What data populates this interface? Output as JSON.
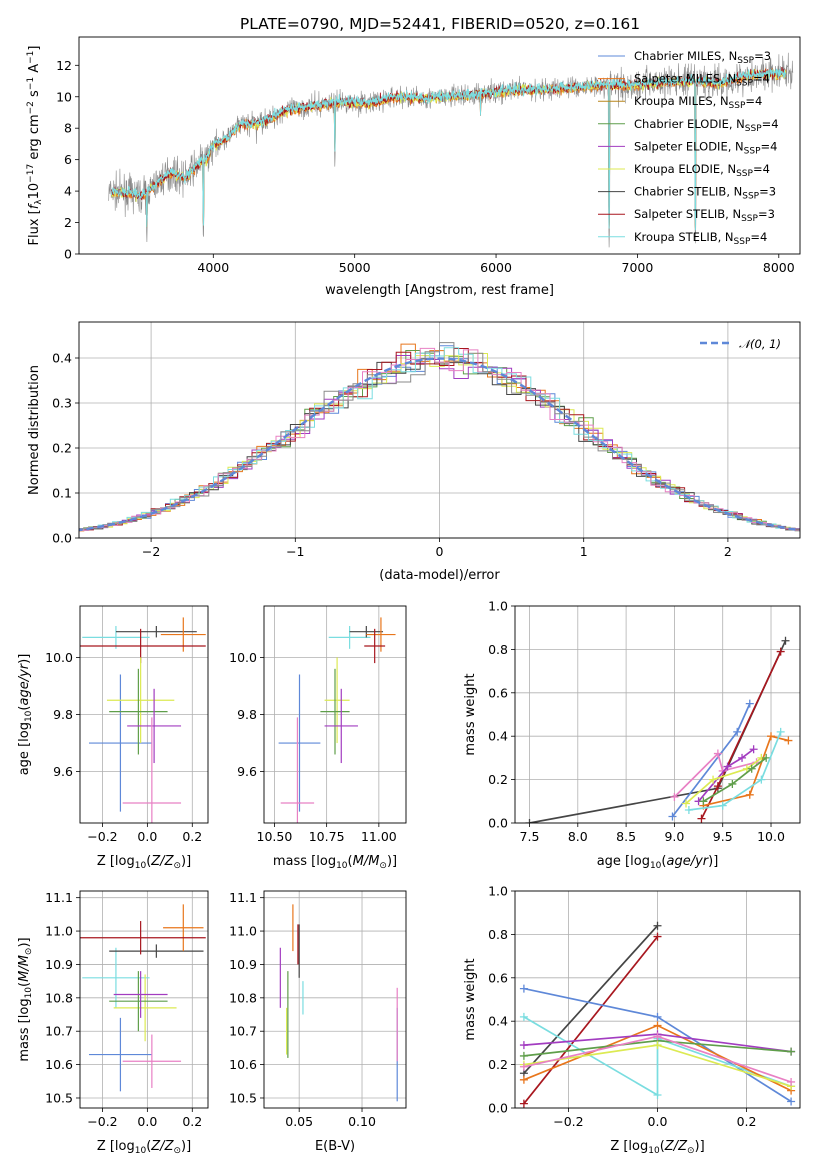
{
  "figure": {
    "title": "PLATE=0790, MJD=52441, FIBERID=0520, z=0.161"
  },
  "colors": {
    "orange": "#e8761c",
    "violet": "#a23cc0",
    "yellow": "#dcea52",
    "gray": "#8a8a8a",
    "dark_gray": "#454545",
    "dark_red": "#a8171f",
    "cyan": "#7adde0",
    "blue": "#5e88d8",
    "pink": "#e880c4",
    "green": "#5f9e4a"
  },
  "chart_data": [
    {
      "type": "line",
      "xlabel": "wavelength [Angstrom, rest frame]",
      "ylabel": "Flux [f_λ 10^-17 erg cm^-2 s^-1 A^-1]",
      "xlim": [
        3050,
        8150
      ],
      "ylim": [
        0,
        13.8
      ],
      "xticks": [
        4000,
        5000,
        6000,
        7000,
        8000
      ],
      "yticks": [
        0,
        2,
        4,
        6,
        8,
        10,
        12
      ],
      "grid": false,
      "legend_position": "right",
      "series": [
        {
          "name": "Chabrier MILES, N_SSP=3",
          "color": "#5e88d8"
        },
        {
          "name": "Salpeter MILES, N_SSP=4",
          "color": "#e8761c"
        },
        {
          "name": "Kroupa MILES, N_SSP=4",
          "color": "#b8861b"
        },
        {
          "name": "Chabrier ELODIE, N_SSP=4",
          "color": "#5f9e4a"
        },
        {
          "name": "Salpeter ELODIE, N_SSP=4",
          "color": "#a23cc0"
        },
        {
          "name": "Kroupa ELODIE, N_SSP=4",
          "color": "#dcea52"
        },
        {
          "name": "Chabrier STELIB, N_SSP=3",
          "color": "#454545"
        },
        {
          "name": "Salpeter STELIB, N_SSP=3",
          "color": "#a8171f"
        },
        {
          "name": "Kroupa STELIB, N_SSP=4",
          "color": "#7adde0"
        }
      ],
      "continuum": {
        "x": [
          3260,
          3400,
          3500,
          3600,
          3700,
          3800,
          3900,
          3950,
          4000,
          4100,
          4200,
          4300,
          4400,
          4500,
          4700,
          4900,
          5100,
          5300,
          5500,
          5800,
          6100,
          6400,
          6700,
          7000,
          7300,
          7600,
          7800,
          8100
        ],
        "y": [
          3.9,
          3.9,
          3.7,
          4.5,
          5.2,
          4.8,
          5.8,
          6.0,
          6.9,
          7.4,
          8.3,
          8.3,
          8.6,
          9.1,
          9.4,
          9.7,
          9.6,
          10.0,
          9.9,
          10.1,
          10.4,
          10.5,
          10.7,
          10.8,
          11.0,
          10.9,
          11.4,
          11.5
        ]
      },
      "dips": [
        [
          3530,
          0.4
        ],
        [
          3930,
          0.5
        ],
        [
          4860,
          5.2
        ],
        [
          6800,
          0.3
        ],
        [
          7410,
          0.2
        ],
        [
          5890,
          8.3
        ],
        [
          4305,
          7.0
        ],
        [
          5175,
          8.5
        ]
      ]
    },
    {
      "type": "histogram",
      "xlabel": "(data-model)/error",
      "ylabel": "Normed distribution",
      "xlim": [
        -2.5,
        2.5
      ],
      "ylim": [
        0,
        0.48
      ],
      "xticks": [
        -2,
        -1,
        0,
        1,
        2
      ],
      "yticks": [
        0.0,
        0.1,
        0.2,
        0.3,
        0.4
      ],
      "grid": true,
      "legend_position": "top-right",
      "legend": "𝒩(0, 1)",
      "bin_width": 0.1,
      "series_colors": [
        "#5e88d8",
        "#e8761c",
        "#5f9e4a",
        "#a23cc0",
        "#dcea52",
        "#454545",
        "#a8171f",
        "#7adde0",
        "#e880c4",
        "#8a8a8a"
      ]
    },
    {
      "type": "errorbar",
      "xlabel": "Z [log10(Z/Z☉)]",
      "ylabel": "age  [log10(age/yr)]",
      "xlim": [
        -0.3,
        0.27
      ],
      "ylim": [
        9.42,
        10.18
      ],
      "xticks": [
        -0.2,
        0.0,
        0.2
      ],
      "yticks": [
        9.6,
        9.8,
        10.0
      ],
      "grid": true,
      "points": [
        {
          "x": -0.14,
          "xerr": 0.15,
          "y": 10.07,
          "yerr": 0.04,
          "color": "#7adde0"
        },
        {
          "x": -0.12,
          "xerr": 0.14,
          "y": 9.7,
          "yerr": 0.24,
          "color": "#5e88d8"
        },
        {
          "x": 0.04,
          "xerr": 0.18,
          "y": 10.09,
          "yerr": 0.02,
          "color": "#454545"
        },
        {
          "x": 0.16,
          "xerr": 0.1,
          "y": 10.08,
          "yerr": 0.06,
          "color": "#e8761c"
        },
        {
          "x": -0.03,
          "xerr": 0.29,
          "y": 10.04,
          "yerr": 0.06,
          "color": "#a8171f"
        },
        {
          "x": -0.03,
          "xerr": 0.15,
          "y": 9.85,
          "yerr": 0.15,
          "color": "#dcea52"
        },
        {
          "x": -0.04,
          "xerr": 0.13,
          "y": 9.81,
          "yerr": 0.15,
          "color": "#5f9e4a"
        },
        {
          "x": 0.03,
          "xerr": 0.12,
          "y": 9.76,
          "yerr": 0.13,
          "color": "#a23cc0"
        },
        {
          "x": 0.02,
          "xerr": 0.13,
          "y": 9.49,
          "yerr": 0.3,
          "color": "#e880c4"
        }
      ]
    },
    {
      "type": "errorbar",
      "xlabel": "mass [log10(M/M☉)]",
      "ylabel": "",
      "xlim": [
        10.45,
        11.13
      ],
      "ylim": [
        9.42,
        10.18
      ],
      "xticks": [
        10.5,
        10.75,
        11.0
      ],
      "yticks": [
        9.6,
        9.8,
        10.0
      ],
      "grid": true,
      "points": [
        {
          "x": 10.86,
          "xerr": 0.1,
          "y": 10.07,
          "yerr": 0.04,
          "color": "#7adde0"
        },
        {
          "x": 10.62,
          "xerr": 0.1,
          "y": 9.7,
          "yerr": 0.24,
          "color": "#5e88d8"
        },
        {
          "x": 10.94,
          "xerr": 0.08,
          "y": 10.09,
          "yerr": 0.02,
          "color": "#454545"
        },
        {
          "x": 11.01,
          "xerr": 0.07,
          "y": 10.08,
          "yerr": 0.06,
          "color": "#e8761c"
        },
        {
          "x": 10.98,
          "xerr": 0.05,
          "y": 10.04,
          "yerr": 0.06,
          "color": "#a8171f"
        },
        {
          "x": 10.8,
          "xerr": 0.06,
          "y": 9.85,
          "yerr": 0.15,
          "color": "#dcea52"
        },
        {
          "x": 10.79,
          "xerr": 0.07,
          "y": 9.81,
          "yerr": 0.15,
          "color": "#5f9e4a"
        },
        {
          "x": 10.82,
          "xerr": 0.08,
          "y": 9.76,
          "yerr": 0.13,
          "color": "#a23cc0"
        },
        {
          "x": 10.61,
          "xerr": 0.08,
          "y": 9.49,
          "yerr": 0.3,
          "color": "#e880c4"
        }
      ]
    },
    {
      "type": "line",
      "xlabel": "age  [log10(age/yr)]",
      "ylabel": "mass weight",
      "xlim": [
        7.35,
        10.3
      ],
      "ylim": [
        0,
        1.0
      ],
      "xticks": [
        7.5,
        8.0,
        8.5,
        9.0,
        9.5,
        10.0
      ],
      "yticks": [
        0.0,
        0.2,
        0.4,
        0.6,
        0.8,
        1.0
      ],
      "grid": true,
      "series": [
        {
          "color": "#454545",
          "x": [
            7.5,
            9.45,
            10.15
          ],
          "y": [
            0.0,
            0.16,
            0.84
          ]
        },
        {
          "color": "#a8171f",
          "x": [
            9.28,
            9.45,
            10.1
          ],
          "y": [
            0.02,
            0.17,
            0.79
          ]
        },
        {
          "color": "#5e88d8",
          "x": [
            8.98,
            9.65,
            9.78
          ],
          "y": [
            0.03,
            0.42,
            0.55
          ]
        },
        {
          "color": "#e880c4",
          "x": [
            9.0,
            9.45,
            9.5,
            9.85
          ],
          "y": [
            0.12,
            0.32,
            0.24,
            0.28
          ]
        },
        {
          "color": "#e8761c",
          "x": [
            9.3,
            9.78,
            10.0,
            10.18
          ],
          "y": [
            0.08,
            0.13,
            0.4,
            0.38
          ]
        },
        {
          "color": "#a23cc0",
          "x": [
            9.25,
            9.55,
            9.7,
            9.82
          ],
          "y": [
            0.1,
            0.26,
            0.3,
            0.34
          ]
        },
        {
          "color": "#dcea52",
          "x": [
            9.12,
            9.4,
            9.75,
            9.9
          ],
          "y": [
            0.09,
            0.2,
            0.25,
            0.3
          ]
        },
        {
          "color": "#5f9e4a",
          "x": [
            9.3,
            9.6,
            9.8,
            9.95
          ],
          "y": [
            0.1,
            0.18,
            0.25,
            0.3
          ]
        },
        {
          "color": "#7adde0",
          "x": [
            9.15,
            9.5,
            9.9,
            10.1
          ],
          "y": [
            0.06,
            0.08,
            0.2,
            0.42
          ]
        }
      ]
    },
    {
      "type": "errorbar",
      "xlabel": "Z [log10(Z/Z☉)]",
      "ylabel": "mass [log10(M/M☉)]",
      "xlim": [
        -0.3,
        0.27
      ],
      "ylim": [
        10.47,
        11.12
      ],
      "xticks": [
        -0.2,
        0.0,
        0.2
      ],
      "yticks": [
        10.5,
        10.6,
        10.7,
        10.8,
        10.9,
        11.0,
        11.1
      ],
      "grid": true,
      "points": [
        {
          "x": -0.14,
          "xerr": 0.15,
          "y": 10.86,
          "yerr": 0.09,
          "color": "#7adde0"
        },
        {
          "x": -0.12,
          "xerr": 0.14,
          "y": 10.63,
          "yerr": 0.11,
          "color": "#5e88d8"
        },
        {
          "x": 0.04,
          "xerr": 0.21,
          "y": 10.94,
          "yerr": 0.02,
          "color": "#454545"
        },
        {
          "x": 0.16,
          "xerr": 0.09,
          "y": 11.01,
          "yerr": 0.07,
          "color": "#e8761c"
        },
        {
          "x": -0.03,
          "xerr": 0.29,
          "y": 10.98,
          "yerr": 0.05,
          "color": "#a8171f"
        },
        {
          "x": -0.01,
          "xerr": 0.14,
          "y": 10.77,
          "yerr": 0.1,
          "color": "#dcea52"
        },
        {
          "x": -0.04,
          "xerr": 0.13,
          "y": 10.79,
          "yerr": 0.09,
          "color": "#5f9e4a"
        },
        {
          "x": -0.03,
          "xerr": 0.12,
          "y": 10.81,
          "yerr": 0.07,
          "color": "#a23cc0"
        },
        {
          "x": 0.02,
          "xerr": 0.13,
          "y": 10.61,
          "yerr": 0.08,
          "color": "#e880c4"
        }
      ]
    },
    {
      "type": "errorbar",
      "xlabel": "E(B-V)",
      "ylabel": "",
      "xlim": [
        0.022,
        0.135
      ],
      "ylim": [
        10.47,
        11.12
      ],
      "xticks": [
        0.05,
        0.1
      ],
      "yticks": [
        10.5,
        10.6,
        10.7,
        10.8,
        10.9,
        11.0,
        11.1
      ],
      "grid": true,
      "points": [
        {
          "x": 0.053,
          "xerr": 0.0,
          "y": 10.8,
          "yerr": 0.05,
          "color": "#7adde0"
        },
        {
          "x": 0.128,
          "xerr": 0.0,
          "y": 10.63,
          "yerr": 0.14,
          "color": "#5e88d8"
        },
        {
          "x": 0.05,
          "xerr": 0.0,
          "y": 10.94,
          "yerr": 0.08,
          "color": "#454545"
        },
        {
          "x": 0.045,
          "xerr": 0.0,
          "y": 11.01,
          "yerr": 0.07,
          "color": "#e8761c"
        },
        {
          "x": 0.049,
          "xerr": 0.0,
          "y": 10.96,
          "yerr": 0.06,
          "color": "#a8171f"
        },
        {
          "x": 0.04,
          "xerr": 0.0,
          "y": 10.7,
          "yerr": 0.07,
          "color": "#dcea52"
        },
        {
          "x": 0.041,
          "xerr": 0.0,
          "y": 10.75,
          "yerr": 0.13,
          "color": "#5f9e4a"
        },
        {
          "x": 0.035,
          "xerr": 0.0,
          "y": 10.86,
          "yerr": 0.09,
          "color": "#a23cc0"
        },
        {
          "x": 0.128,
          "xerr": 0.0,
          "y": 10.72,
          "yerr": 0.11,
          "color": "#e880c4"
        }
      ]
    },
    {
      "type": "line",
      "xlabel": "Z [log10(Z/Z☉)]",
      "ylabel": "mass weight",
      "xlim": [
        -0.32,
        0.32
      ],
      "ylim": [
        0,
        1.0
      ],
      "xticks": [
        -0.2,
        0.0,
        0.2
      ],
      "yticks": [
        0.0,
        0.2,
        0.4,
        0.6,
        0.8,
        1.0
      ],
      "grid": true,
      "series": [
        {
          "color": "#454545",
          "x": [
            -0.3,
            0.0
          ],
          "y": [
            0.16,
            0.84
          ]
        },
        {
          "color": "#a8171f",
          "x": [
            -0.3,
            0.0
          ],
          "y": [
            0.02,
            0.79
          ]
        },
        {
          "color": "#5e88d8",
          "x": [
            -0.3,
            0.0,
            0.3
          ],
          "y": [
            0.55,
            0.42,
            0.03
          ]
        },
        {
          "color": "#7adde0",
          "x": [
            -0.3,
            0.0,
            0.0,
            0.3
          ],
          "y": [
            0.42,
            0.06,
            0.32,
            0.1
          ]
        },
        {
          "color": "#e8761c",
          "x": [
            -0.3,
            0.0,
            0.3
          ],
          "y": [
            0.13,
            0.38,
            0.08
          ]
        },
        {
          "color": "#a23cc0",
          "x": [
            -0.3,
            0.0,
            0.3
          ],
          "y": [
            0.29,
            0.34,
            0.26
          ]
        },
        {
          "color": "#5f9e4a",
          "x": [
            -0.3,
            0.0,
            0.3
          ],
          "y": [
            0.24,
            0.31,
            0.26
          ]
        },
        {
          "color": "#dcea52",
          "x": [
            -0.3,
            0.0,
            0.3
          ],
          "y": [
            0.2,
            0.29,
            0.1
          ]
        },
        {
          "color": "#e880c4",
          "x": [
            -0.3,
            0.0,
            0.3
          ],
          "y": [
            0.19,
            0.33,
            0.12
          ]
        }
      ]
    }
  ]
}
